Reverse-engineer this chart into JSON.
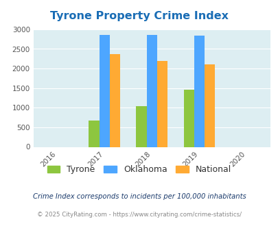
{
  "title": "Tyrone Property Crime Index",
  "years": [
    2016,
    2017,
    2018,
    2019,
    2020
  ],
  "bar_years": [
    2017,
    2018,
    2019
  ],
  "tyrone": [
    667,
    1033,
    1467
  ],
  "oklahoma": [
    2867,
    2867,
    2833
  ],
  "national": [
    2367,
    2200,
    2100
  ],
  "tyrone_color": "#8dc63f",
  "oklahoma_color": "#4da6ff",
  "national_color": "#ffaa33",
  "bg_color": "#ddeef2",
  "ylim": [
    0,
    3000
  ],
  "yticks": [
    0,
    500,
    1000,
    1500,
    2000,
    2500,
    3000
  ],
  "legend_labels": [
    "Tyrone",
    "Oklahoma",
    "National"
  ],
  "footnote1": "Crime Index corresponds to incidents per 100,000 inhabitants",
  "footnote2": "© 2025 CityRating.com - https://www.cityrating.com/crime-statistics/",
  "title_color": "#1a6db5",
  "footnote1_color": "#1a3a6b",
  "footnote2_color": "#888888",
  "bar_width": 0.22
}
